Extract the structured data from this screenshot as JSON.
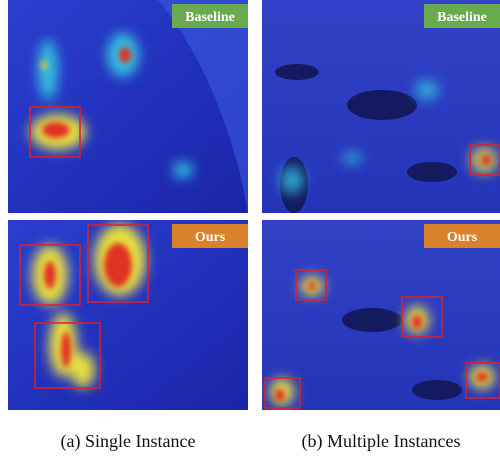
{
  "panels": [
    {
      "label": "Baseline"
    },
    {
      "label": "Baseline"
    },
    {
      "label": "Ours"
    },
    {
      "label": "Ours"
    }
  ],
  "captions": [
    "(a) Single Instance",
    "(b) Multiple Instances"
  ]
}
